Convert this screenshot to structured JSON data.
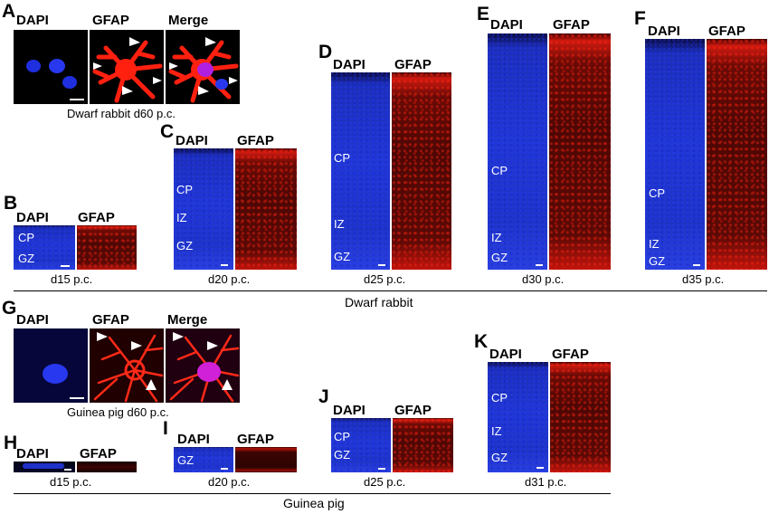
{
  "panels": {
    "A": {
      "letter": "A",
      "ch1": "DAPI",
      "ch2": "GFAP",
      "ch3": "Merge",
      "caption": "Dwarf rabbit d60 p.c."
    },
    "B": {
      "letter": "B",
      "ch1": "DAPI",
      "ch2": "GFAP",
      "zones": [
        "CP",
        "GZ"
      ],
      "caption": "d15 p.c."
    },
    "C": {
      "letter": "C",
      "ch1": "DAPI",
      "ch2": "GFAP",
      "zones": [
        "CP",
        "IZ",
        "GZ"
      ],
      "caption": "d20 p.c."
    },
    "D": {
      "letter": "D",
      "ch1": "DAPI",
      "ch2": "GFAP",
      "zones": [
        "CP",
        "IZ",
        "GZ"
      ],
      "caption": "d25 p.c."
    },
    "E": {
      "letter": "E",
      "ch1": "DAPI",
      "ch2": "GFAP",
      "zones": [
        "CP",
        "IZ",
        "GZ"
      ],
      "caption": "d30 p.c."
    },
    "F": {
      "letter": "F",
      "ch1": "DAPI",
      "ch2": "GFAP",
      "zones": [
        "CP",
        "IZ",
        "GZ"
      ],
      "caption": "d35 p.c."
    },
    "G": {
      "letter": "G",
      "ch1": "DAPI",
      "ch2": "GFAP",
      "ch3": "Merge",
      "caption": "Guinea pig d60 p.c."
    },
    "H": {
      "letter": "H",
      "ch1": "DAPI",
      "ch2": "GFAP",
      "caption": "d15 p.c."
    },
    "I": {
      "letter": "I",
      "ch1": "DAPI",
      "ch2": "GFAP",
      "zones": [
        "GZ"
      ],
      "caption": "d20 p.c."
    },
    "J": {
      "letter": "J",
      "ch1": "DAPI",
      "ch2": "GFAP",
      "zones": [
        "CP",
        "GZ"
      ],
      "caption": "d25 p.c."
    },
    "K": {
      "letter": "K",
      "ch1": "DAPI",
      "ch2": "GFAP",
      "zones": [
        "CP",
        "IZ",
        "GZ"
      ],
      "caption": "d31 p.c."
    }
  },
  "groups": {
    "rabbit": "Dwarf rabbit",
    "guinea": "Guinea pig"
  },
  "colors": {
    "dapi": "#2137d2",
    "gfap": "#d01a10",
    "merge": "#c020c0"
  }
}
